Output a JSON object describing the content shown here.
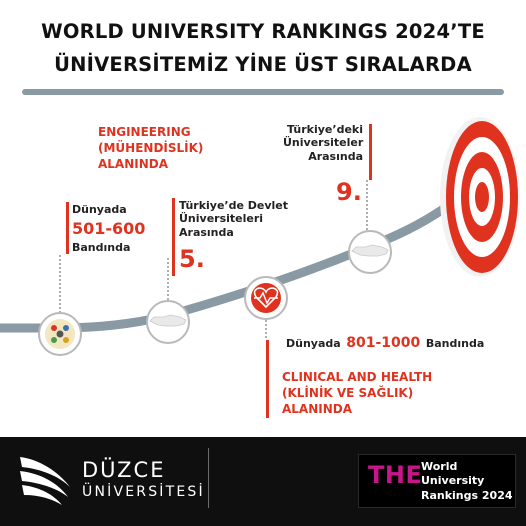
{
  "headline": {
    "line1": "WORLD UNIVERSITY RANKINGS 2024’TE",
    "line2": "ÜNİVERSİTEMİZ YİNE ÜST SIRALARDA"
  },
  "engineering": {
    "line1": "ENGINEERING",
    "line2": "(MÜHENDİSLİK)",
    "line3": "ALANINDA"
  },
  "world_engineering": {
    "prefix": "Dünyada",
    "value": "501-600",
    "suffix": "Bandında"
  },
  "turkey_state": {
    "line1": "Türkiye’de Devlet",
    "line2": "Üniversiteleri",
    "line3": "Arasında",
    "rank": "5."
  },
  "turkey_all": {
    "line1": "Türkiye’deki",
    "line2": "Üniversiteler",
    "line3": "Arasında",
    "rank": "9."
  },
  "world_clinical": {
    "prefix": "Dünyada",
    "value": "801-1000",
    "suffix": "Bandında"
  },
  "clinical": {
    "line1": "CLINICAL AND HEALTH",
    "line2": "(KLİNİK VE SAĞLIK)",
    "line3": "ALANINDA"
  },
  "footer": {
    "university_name": "DÜZCE",
    "university_sub": "ÜNİVERSİTESİ",
    "the_logo": "THE",
    "the_line1": "World",
    "the_line2": "University",
    "the_line3": "Rankings 2024"
  },
  "colors": {
    "accent": "#e0331f",
    "curve": "#8a9aa5",
    "footer_bg": "#0f0f0f",
    "the_magenta": "#c8168a"
  },
  "icons": [
    "engineering-icon",
    "turkey-map-icon",
    "heart-pulse-icon",
    "target-icon",
    "duzce-logo-icon"
  ]
}
